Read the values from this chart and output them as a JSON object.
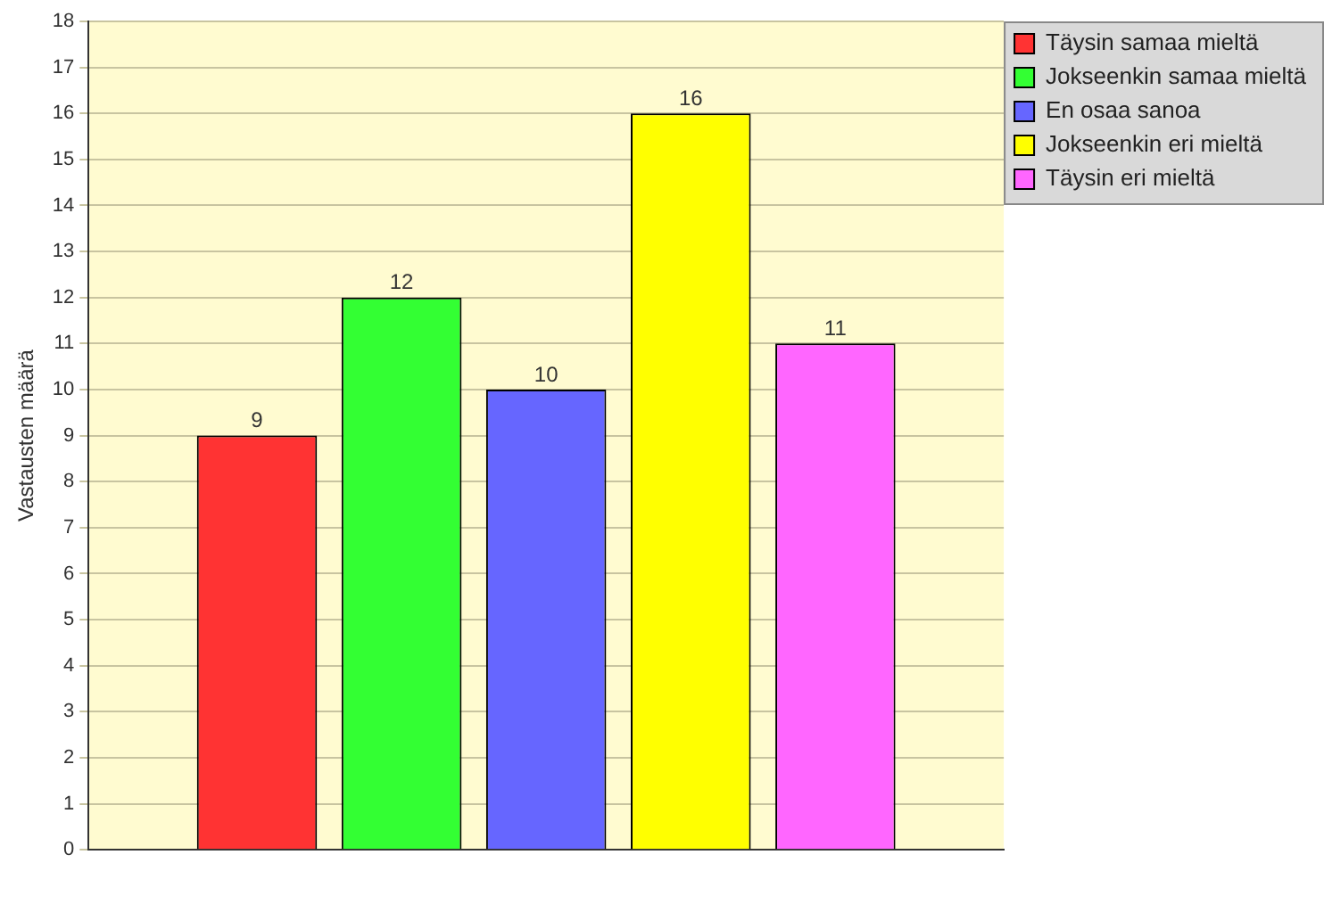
{
  "chart_data": {
    "type": "bar",
    "ylabel": "Vastausten määrä",
    "categories": [
      null
    ],
    "series": [
      {
        "name": "Täysin samaa mieltä",
        "color": "#ff3333",
        "values": [
          9
        ]
      },
      {
        "name": "Jokseenkin samaa mieltä",
        "color": "#33ff33",
        "values": [
          12
        ]
      },
      {
        "name": "En osaa sanoa",
        "color": "#6666ff",
        "values": [
          10
        ]
      },
      {
        "name": "Jokseenkin eri mieltä",
        "color": "#ffff00",
        "values": [
          16
        ]
      },
      {
        "name": "Täysin eri mieltä",
        "color": "#ff66ff",
        "values": [
          11
        ]
      }
    ],
    "ylim": [
      0,
      18
    ],
    "yticks": [
      0,
      1,
      2,
      3,
      4,
      5,
      6,
      7,
      8,
      9,
      10,
      11,
      12,
      13,
      14,
      15,
      16,
      17,
      18
    ],
    "grid": "y",
    "legend": "top right",
    "data_labels": true
  }
}
